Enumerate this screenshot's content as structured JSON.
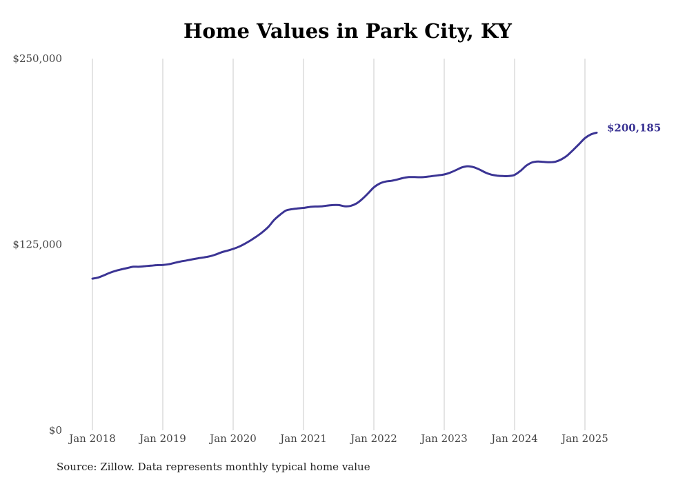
{
  "chart_data": {
    "type": "line",
    "title": "Home Values in Park City, KY",
    "source": "Source: Zillow. Data represents monthly typical home value",
    "line_color": "#3b3494",
    "grid": "vertical",
    "ylim": [
      0,
      250000
    ],
    "y_ticks": [
      {
        "value": 0,
        "label": "$0"
      },
      {
        "value": 125000,
        "label": "$125,000"
      },
      {
        "value": 250000,
        "label": "$250,000"
      }
    ],
    "x_ticks": [
      {
        "value": "2018-01",
        "label": "Jan 2018"
      },
      {
        "value": "2019-01",
        "label": "Jan 2019"
      },
      {
        "value": "2020-01",
        "label": "Jan 2020"
      },
      {
        "value": "2021-01",
        "label": "Jan 2021"
      },
      {
        "value": "2022-01",
        "label": "Jan 2022"
      },
      {
        "value": "2023-01",
        "label": "Jan 2023"
      },
      {
        "value": "2024-01",
        "label": "Jan 2024"
      },
      {
        "value": "2025-01",
        "label": "Jan 2025"
      }
    ],
    "end_label": "$200,185",
    "series": [
      {
        "x": [
          "2018-01",
          "2018-02",
          "2018-03",
          "2018-04",
          "2018-05",
          "2018-06",
          "2018-07",
          "2018-08",
          "2018-09",
          "2018-10",
          "2018-11",
          "2018-12",
          "2019-01",
          "2019-02",
          "2019-03",
          "2019-04",
          "2019-05",
          "2019-06",
          "2019-07",
          "2019-08",
          "2019-09",
          "2019-10",
          "2019-11",
          "2019-12",
          "2020-01",
          "2020-02",
          "2020-03",
          "2020-04",
          "2020-05",
          "2020-06",
          "2020-07",
          "2020-08",
          "2020-09",
          "2020-10",
          "2020-11",
          "2020-12",
          "2021-01",
          "2021-02",
          "2021-03",
          "2021-04",
          "2021-05",
          "2021-06",
          "2021-07",
          "2021-08",
          "2021-09",
          "2021-10",
          "2021-11",
          "2021-12",
          "2022-01",
          "2022-02",
          "2022-03",
          "2022-04",
          "2022-05",
          "2022-06",
          "2022-07",
          "2022-08",
          "2022-09",
          "2022-10",
          "2022-11",
          "2022-12",
          "2023-01",
          "2023-02",
          "2023-03",
          "2023-04",
          "2023-05",
          "2023-06",
          "2023-07",
          "2023-08",
          "2023-09",
          "2023-10",
          "2023-11",
          "2023-12",
          "2024-01",
          "2024-02",
          "2024-03",
          "2024-04",
          "2024-05",
          "2024-06",
          "2024-07",
          "2024-08",
          "2024-09",
          "2024-10",
          "2024-11",
          "2024-12",
          "2025-01",
          "2025-02",
          "2025-03"
        ],
        "values": [
          102000,
          102800,
          104300,
          106000,
          107300,
          108300,
          109200,
          110000,
          110000,
          110400,
          110700,
          111100,
          111200,
          111700,
          112600,
          113500,
          114200,
          115000,
          115700,
          116300,
          117000,
          118200,
          119700,
          120800,
          122000,
          123500,
          125500,
          127800,
          130400,
          133300,
          136800,
          141500,
          145000,
          147800,
          148700,
          149200,
          149600,
          150200,
          150500,
          150600,
          151100,
          151500,
          151500,
          150700,
          150900,
          152500,
          155500,
          159300,
          163400,
          166000,
          167300,
          167800,
          168700,
          169700,
          170300,
          170300,
          170200,
          170500,
          171000,
          171500,
          172100,
          173300,
          175000,
          176800,
          177600,
          177000,
          175400,
          173400,
          172000,
          171300,
          171000,
          171000,
          171800,
          174500,
          178000,
          180200,
          180800,
          180500,
          180300,
          180700,
          182300,
          184900,
          188600,
          192500,
          196500,
          199000,
          200185
        ]
      }
    ]
  }
}
